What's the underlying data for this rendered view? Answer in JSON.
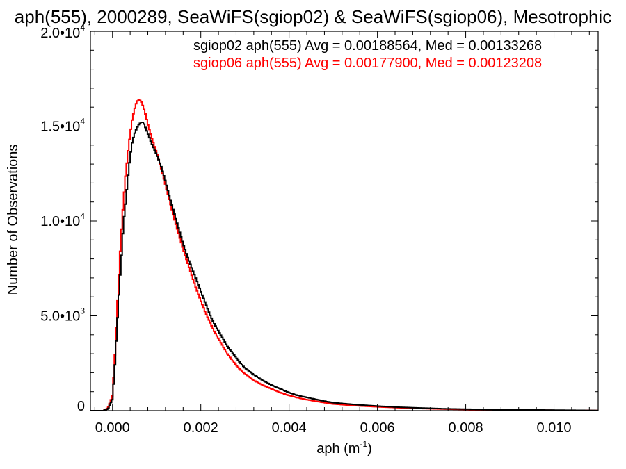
{
  "chart_data": {
    "type": "line",
    "title": "aph(555), 2000289, SeaWiFS(sgiop02) & SeaWiFS(sgiop06), Mesotrophic",
    "xlabel_base": "aph (m",
    "xlabel_sup": "-1",
    "xlabel_end": ")",
    "ylabel": "Number of Observations",
    "xlim": [
      -0.0005,
      0.011
    ],
    "ylim": [
      0,
      20000
    ],
    "xticks": [
      {
        "value": 0.0,
        "label": "0.000"
      },
      {
        "value": 0.002,
        "label": "0.002"
      },
      {
        "value": 0.004,
        "label": "0.004"
      },
      {
        "value": 0.006,
        "label": "0.006"
      },
      {
        "value": 0.008,
        "label": "0.008"
      },
      {
        "value": 0.01,
        "label": "0.010"
      }
    ],
    "yticks": [
      {
        "value": 0,
        "base": "0",
        "exp": ""
      },
      {
        "value": 5000,
        "base": "5.0•10",
        "exp": "3"
      },
      {
        "value": 10000,
        "base": "1.0•10",
        "exp": "4"
      },
      {
        "value": 15000,
        "base": "1.5•10",
        "exp": "4"
      },
      {
        "value": 20000,
        "base": "2.0•10",
        "exp": "4"
      }
    ],
    "legend": [
      {
        "text": "sgiop02 aph(555) Avg = 0.00188564, Med = 0.00133268",
        "color": "#000000"
      },
      {
        "text": "sgiop06 aph(555) Avg = 0.00177900, Med = 0.00123208",
        "color": "#ff0000"
      }
    ],
    "legend_position": "top-right",
    "grid": false,
    "series": [
      {
        "name": "sgiop02",
        "color": "#000000",
        "x": [
          -0.0005,
          -0.0002,
          -0.0001,
          0.0,
          5e-05,
          0.0001,
          0.00015,
          0.0002,
          0.00025,
          0.0003,
          0.00035,
          0.0004,
          0.00045,
          0.0005,
          0.00055,
          0.0006,
          0.00065,
          0.0007,
          0.00075,
          0.0008,
          0.00085,
          0.0009,
          0.001,
          0.0011,
          0.0012,
          0.0013,
          0.0014,
          0.0015,
          0.0016,
          0.0017,
          0.0018,
          0.0019,
          0.002,
          0.0021,
          0.0022,
          0.0023,
          0.0024,
          0.0025,
          0.0026,
          0.0027,
          0.0028,
          0.0029,
          0.003,
          0.0032,
          0.0034,
          0.0036,
          0.0038,
          0.004,
          0.0042,
          0.0044,
          0.0046,
          0.0048,
          0.005,
          0.0055,
          0.006,
          0.0065,
          0.007,
          0.0075,
          0.008,
          0.0085,
          0.009,
          0.0095,
          0.01,
          0.0105,
          0.011
        ],
        "y": [
          0,
          0,
          100,
          600,
          2200,
          4300,
          6300,
          8000,
          9900,
          11000,
          12300,
          13400,
          14200,
          14600,
          14900,
          15100,
          15200,
          15200,
          14900,
          14600,
          14300,
          14000,
          13500,
          12900,
          12100,
          11200,
          10400,
          9600,
          8800,
          8100,
          7500,
          6900,
          6300,
          5700,
          5100,
          4600,
          4200,
          3800,
          3400,
          3100,
          2800,
          2500,
          2250,
          1900,
          1600,
          1350,
          1150,
          950,
          800,
          700,
          600,
          500,
          420,
          320,
          240,
          180,
          140,
          100,
          80,
          60,
          50,
          40,
          30,
          20,
          10
        ]
      },
      {
        "name": "sgiop06",
        "color": "#ff0000",
        "x": [
          -0.0005,
          -0.0002,
          -0.0001,
          0.0,
          5e-05,
          0.0001,
          0.00015,
          0.0002,
          0.00025,
          0.0003,
          0.00035,
          0.0004,
          0.00045,
          0.0005,
          0.00055,
          0.0006,
          0.00065,
          0.0007,
          0.00075,
          0.0008,
          0.00085,
          0.0009,
          0.001,
          0.0011,
          0.0012,
          0.0013,
          0.0014,
          0.0015,
          0.0016,
          0.0017,
          0.0018,
          0.0019,
          0.002,
          0.0021,
          0.0022,
          0.0023,
          0.0024,
          0.0025,
          0.0026,
          0.0027,
          0.0028,
          0.0029,
          0.003,
          0.0032,
          0.0034,
          0.0036,
          0.0038,
          0.004,
          0.0042,
          0.0044,
          0.0046,
          0.0048,
          0.005,
          0.0055,
          0.006,
          0.0065,
          0.007,
          0.0075,
          0.008,
          0.0085,
          0.009,
          0.0095,
          0.01,
          0.0105,
          0.011
        ],
        "y": [
          0,
          0,
          150,
          800,
          2700,
          5100,
          7400,
          9400,
          11100,
          12500,
          13600,
          14600,
          15400,
          15900,
          16300,
          16400,
          16300,
          16000,
          15600,
          15100,
          14700,
          14300,
          13600,
          12800,
          11900,
          11000,
          10100,
          9300,
          8500,
          7800,
          7100,
          6400,
          5800,
          5200,
          4700,
          4200,
          3800,
          3400,
          3000,
          2700,
          2400,
          2150,
          1950,
          1600,
          1350,
          1150,
          950,
          800,
          680,
          580,
          500,
          420,
          350,
          260,
          200,
          150,
          110,
          80,
          60,
          45,
          35,
          25,
          20,
          15,
          10
        ]
      }
    ]
  }
}
